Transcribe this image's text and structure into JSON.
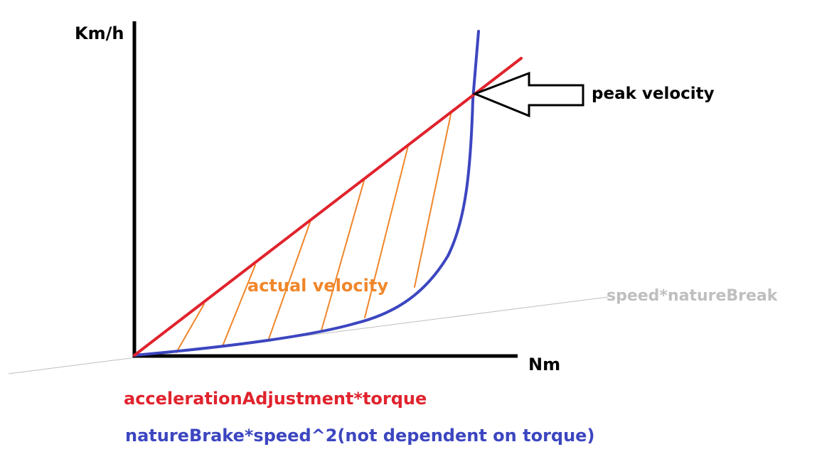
{
  "axes": {
    "y_label": "Km/h",
    "x_label": "Nm"
  },
  "annotations": {
    "peak": "peak velocity",
    "actual": "actual velocity",
    "gray_line": "speed*natureBreak"
  },
  "legend": {
    "red": "accelerationAdjustment*torque",
    "blue": "natureBrake*speed^2(not dependent on torque)"
  },
  "colors": {
    "red": "#e0232d",
    "blue": "#3c46c0",
    "orange": "#f0862a",
    "gray": "#bfbfbf",
    "axis": "#000000"
  }
}
